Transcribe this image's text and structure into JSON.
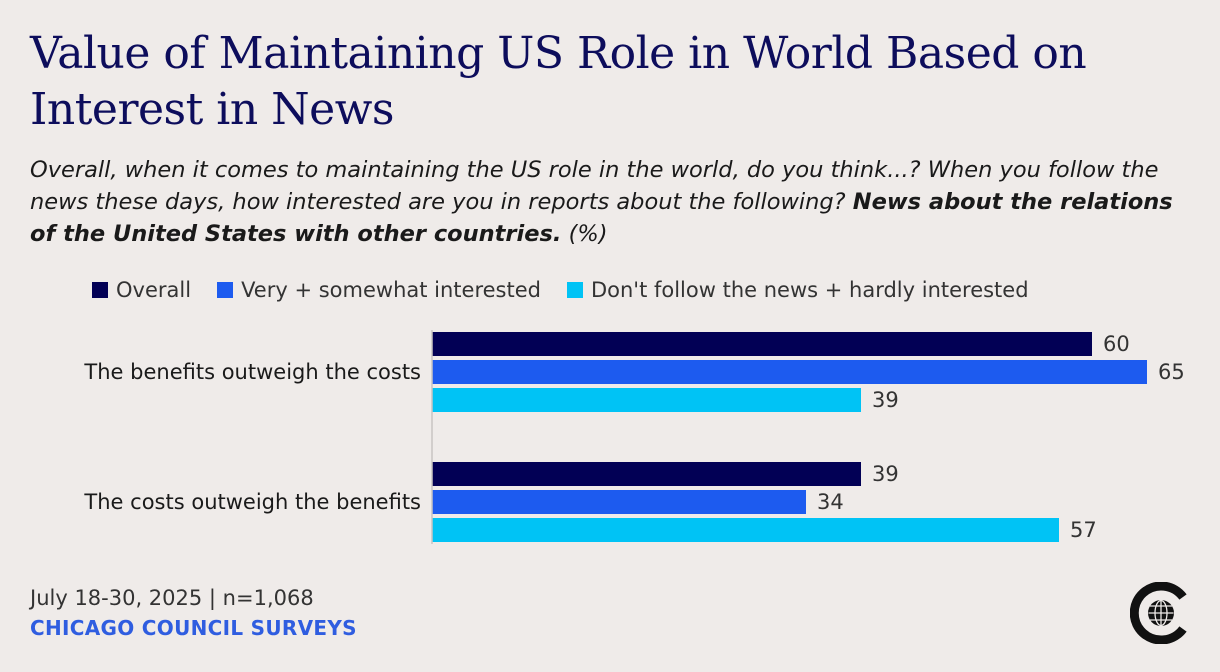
{
  "title": "Value of Maintaining US Role in World Based on Interest in News",
  "subtitle_plain": "Overall, when it comes to maintaining the US role in the world, do you think...? When you follow the news these days, how interested are you in reports about the following?",
  "subtitle_bold": "News about the relations of the United States with other countries.",
  "subtitle_unit": "(%)",
  "footer": {
    "date": "July 18-30, 2025 | n=1,068",
    "brand": "CHICAGO COUNCIL SURVEYS"
  },
  "colors": {
    "overall": "#020055",
    "interested": "#1d5bef",
    "not_interested": "#00c3f5"
  },
  "chart_data": {
    "type": "bar",
    "orientation": "horizontal",
    "categories": [
      "The benefits outweigh the costs",
      "The costs outweigh the benefits"
    ],
    "series": [
      {
        "name": "Overall",
        "values": [
          60,
          39
        ],
        "color": "#020055"
      },
      {
        "name": "Very + somewhat interested",
        "values": [
          65,
          34
        ],
        "color": "#1d5bef"
      },
      {
        "name": "Don't follow the news + hardly interested",
        "values": [
          39,
          57
        ],
        "color": "#00c3f5"
      }
    ],
    "xlim": [
      0,
      65
    ],
    "legend_position": "top"
  }
}
